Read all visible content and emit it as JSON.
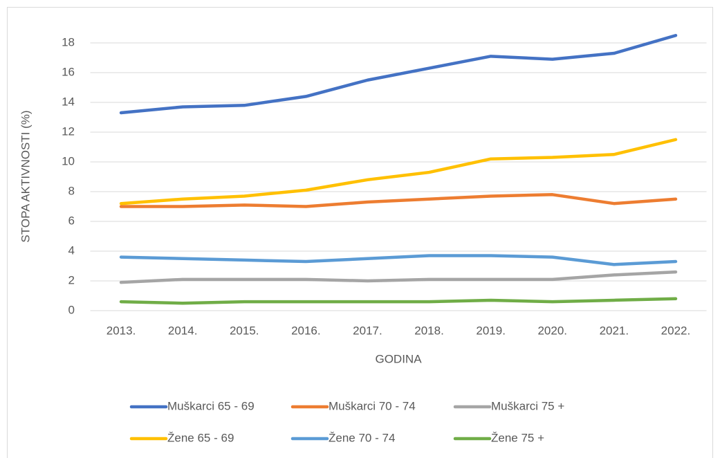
{
  "chart_data": {
    "type": "line",
    "x_label": "GODINA",
    "y_label": "STOPA AKTIVNOSTI (%)",
    "categories": [
      "2013.",
      "2014.",
      "2015.",
      "2016.",
      "2017.",
      "2018.",
      "2019.",
      "2020.",
      "2021.",
      "2022."
    ],
    "series": [
      {
        "name": "Muškarci 65 - 69",
        "color": "#4472c4",
        "values": [
          13.3,
          13.7,
          13.8,
          14.4,
          15.5,
          16.3,
          17.1,
          16.9,
          17.3,
          18.5
        ]
      },
      {
        "name": "Muškarci 70 - 74",
        "color": "#ed7d31",
        "values": [
          7.0,
          7.0,
          7.1,
          7.0,
          7.3,
          7.5,
          7.7,
          7.8,
          7.2,
          7.5
        ]
      },
      {
        "name": "Muškarci 75 +",
        "color": "#a5a5a5",
        "values": [
          1.9,
          2.1,
          2.1,
          2.1,
          2.0,
          2.1,
          2.1,
          2.1,
          2.4,
          2.6
        ]
      },
      {
        "name": "Žene 65 - 69",
        "color": "#ffc000",
        "values": [
          7.2,
          7.5,
          7.7,
          8.1,
          8.8,
          9.3,
          10.2,
          10.3,
          10.5,
          11.5
        ]
      },
      {
        "name": "Žene 70 - 74",
        "color": "#5b9bd5",
        "values": [
          3.6,
          3.5,
          3.4,
          3.3,
          3.5,
          3.7,
          3.7,
          3.6,
          3.1,
          3.3
        ]
      },
      {
        "name": "Žene 75 +",
        "color": "#70ad47",
        "values": [
          0.6,
          0.5,
          0.6,
          0.6,
          0.6,
          0.6,
          0.7,
          0.6,
          0.7,
          0.8
        ]
      }
    ],
    "ylim": [
      0,
      19
    ],
    "yticks": [
      0,
      2,
      4,
      6,
      8,
      10,
      12,
      14,
      16,
      18
    ],
    "grid": true,
    "legend": "bottom"
  }
}
